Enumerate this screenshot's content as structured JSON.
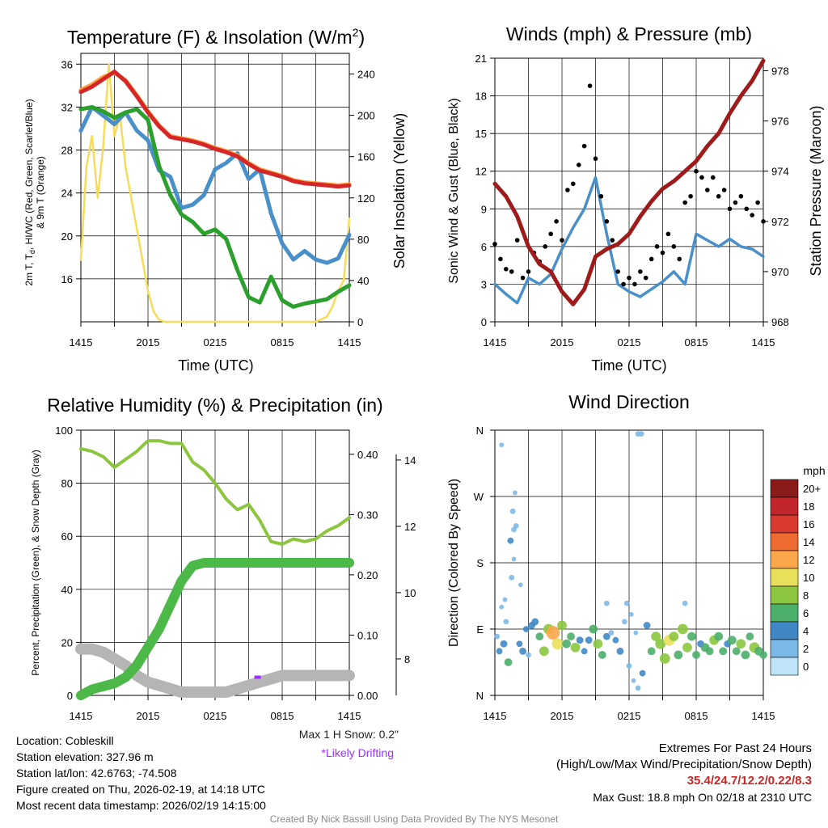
{
  "colors": {
    "red": "#d62728",
    "orange": "#ffa040",
    "green": "#2ca02c",
    "blue": "#4a90c8",
    "yellow": "#f7dc5a",
    "maroon": "#9e1b1b",
    "black": "#000000",
    "gray": "#b5b5b5",
    "rh_green": "#8cc63f",
    "precip_green": "#4cb848",
    "purple": "#9b30ff"
  },
  "time_ticks": [
    "1415",
    "2015",
    "0215",
    "0815",
    "1415"
  ],
  "chart_data": [
    {
      "type": "line",
      "title": "Temperature (F) & Insolation (W/m",
      "title_sup": "2",
      "title_close": ")",
      "xlabel": "Time (UTC)",
      "ylabel_line1": "2m T, T",
      "ylabel_sub": "d",
      "ylabel_line1_rest": ", HI/WC (Red, Green, Scarlet/Blue)",
      "ylabel_line2": "& 9m T (Orange)",
      "ylabel_right": "Solar Insolation (Yellow)",
      "ylim": [
        12,
        37
      ],
      "yticks": [
        "16",
        "20",
        "24",
        "28",
        "32",
        "36"
      ],
      "ylim_right": [
        0,
        260
      ],
      "yticks_right": [
        "0",
        "40",
        "80",
        "120",
        "160",
        "200",
        "240"
      ],
      "xlim": [
        0,
        24
      ],
      "series": [
        {
          "name": "9m T",
          "color": "orange",
          "axis": "left",
          "x": [
            0,
            1,
            2,
            3,
            4,
            5,
            6,
            7,
            8,
            9,
            10,
            11,
            12,
            13,
            14,
            15,
            16,
            17,
            18,
            19,
            20,
            21,
            22,
            23,
            24
          ],
          "values": [
            33.6,
            34.1,
            34.8,
            35.2,
            34.5,
            33.1,
            31.6,
            30.3,
            29.3,
            29.1,
            28.9,
            28.6,
            28.2,
            27.9,
            27.5,
            26.8,
            26.2,
            25.9,
            25.6,
            25.2,
            25.0,
            24.9,
            24.8,
            24.7,
            24.8
          ]
        },
        {
          "name": "2m T",
          "color": "red",
          "axis": "left",
          "x": [
            0,
            1,
            2,
            3,
            4,
            5,
            6,
            7,
            8,
            9,
            10,
            11,
            12,
            13,
            14,
            15,
            16,
            17,
            18,
            19,
            20,
            21,
            22,
            23,
            24
          ],
          "values": [
            33.4,
            33.9,
            34.6,
            35.3,
            34.4,
            33.0,
            31.5,
            30.2,
            29.2,
            29.0,
            28.8,
            28.5,
            28.1,
            27.8,
            27.4,
            26.7,
            26.1,
            25.8,
            25.5,
            25.1,
            24.9,
            24.8,
            24.7,
            24.6,
            24.7
          ]
        },
        {
          "name": "Td",
          "color": "green",
          "axis": "left",
          "x": [
            0,
            1,
            2,
            3,
            4,
            5,
            6,
            7,
            8,
            9,
            10,
            11,
            12,
            13,
            14,
            15,
            16,
            17,
            18,
            19,
            20,
            21,
            22,
            23,
            24
          ],
          "values": [
            31.8,
            32.0,
            31.6,
            31.0,
            31.5,
            31.8,
            30.8,
            26.5,
            23.8,
            22.0,
            21.3,
            20.2,
            20.6,
            19.7,
            16.8,
            14.3,
            13.8,
            16.2,
            14.0,
            13.4,
            13.7,
            13.9,
            14.1,
            14.8,
            15.4
          ]
        },
        {
          "name": "HI/WC",
          "color": "blue",
          "axis": "left",
          "x": [
            0,
            1,
            2,
            3,
            4,
            5,
            6,
            7,
            8,
            9,
            10,
            11,
            12,
            13,
            14,
            15,
            16,
            17,
            18,
            19,
            20,
            21,
            22,
            23,
            24
          ],
          "values": [
            29.8,
            32.0,
            31.2,
            30.4,
            31.5,
            29.8,
            28.9,
            26.1,
            25.5,
            22.6,
            22.9,
            23.8,
            26.2,
            26.8,
            27.7,
            25.3,
            26.2,
            22.1,
            19.3,
            17.8,
            18.6,
            17.8,
            17.5,
            17.9,
            20.1
          ]
        },
        {
          "name": "Solar Insolation",
          "color": "yellow",
          "axis": "right",
          "x": [
            0,
            0.5,
            1,
            1.5,
            2,
            2.5,
            3,
            3.5,
            4,
            4.5,
            5,
            5.5,
            6,
            6.5,
            7,
            7.5,
            8,
            9,
            10,
            12,
            14,
            16,
            18,
            20,
            21,
            22,
            22.5,
            23,
            23.5,
            24
          ],
          "values": [
            60,
            150,
            180,
            120,
            170,
            250,
            180,
            200,
            150,
            120,
            90,
            60,
            30,
            10,
            2,
            0,
            0,
            0,
            0,
            0,
            0,
            0,
            0,
            0,
            0,
            5,
            15,
            30,
            40,
            100
          ]
        }
      ]
    },
    {
      "type": "line",
      "title": "Winds (mph) & Pressure (mb)",
      "xlabel": "Time (UTC)",
      "ylabel": "Sonic Wind & Gust (Blue, Black)",
      "ylabel_right": "Station Pressure (Maroon)",
      "ylim": [
        0,
        21
      ],
      "yticks": [
        "0",
        "3",
        "6",
        "9",
        "12",
        "15",
        "18",
        "21"
      ],
      "ylim_right": [
        968,
        978.5
      ],
      "yticks_right": [
        "968",
        "970",
        "972",
        "974",
        "976",
        "978"
      ],
      "xlim": [
        0,
        24
      ],
      "series": [
        {
          "name": "Pressure",
          "color": "maroon",
          "axis": "right",
          "x": [
            0,
            1,
            2,
            3,
            4,
            5,
            6,
            7,
            8,
            9,
            10,
            11,
            12,
            13,
            14,
            15,
            16,
            17,
            18,
            19,
            20,
            21,
            22,
            23,
            24
          ],
          "values": [
            973.5,
            973.0,
            972.2,
            971.0,
            970.3,
            970.0,
            969.2,
            968.7,
            969.3,
            970.6,
            970.9,
            971.1,
            971.5,
            972.2,
            972.8,
            973.3,
            973.6,
            974.0,
            974.4,
            975.0,
            975.5,
            976.3,
            977.0,
            977.6,
            978.4
          ]
        },
        {
          "name": "Sonic Wind",
          "color": "blue",
          "axis": "left",
          "x": [
            0,
            1,
            2,
            3,
            4,
            5,
            6,
            7,
            8,
            9,
            10,
            11,
            12,
            13,
            14,
            15,
            16,
            17,
            18,
            19,
            20,
            21,
            22,
            23,
            24
          ],
          "values": [
            3.0,
            2.2,
            1.5,
            3.5,
            3.0,
            3.8,
            5.8,
            7.5,
            9.0,
            11.5,
            7.0,
            3.0,
            2.4,
            2.0,
            2.6,
            3.2,
            4.0,
            3.0,
            7.0,
            6.5,
            6.0,
            6.6,
            6.0,
            5.8,
            5.2
          ]
        },
        {
          "name": "Gust",
          "color": "black",
          "axis": "left",
          "x": [
            0,
            0.5,
            1,
            1.5,
            2,
            2.5,
            3,
            3.5,
            4,
            4.5,
            5,
            5.5,
            6,
            6.5,
            7,
            7.5,
            8,
            8.5,
            9,
            9.5,
            10,
            10.5,
            11,
            11.5,
            12,
            12.5,
            13,
            13.5,
            14,
            14.5,
            15,
            15.5,
            16,
            16.5,
            17,
            17.5,
            18,
            18.5,
            19,
            19.5,
            20,
            20.5,
            21,
            21.5,
            22,
            22.5,
            23,
            23.5,
            24
          ],
          "values": [
            6.2,
            5.0,
            4.2,
            4.0,
            6.5,
            3.5,
            4.0,
            5.5,
            4.8,
            6.0,
            7.0,
            8.0,
            6.5,
            10.5,
            11.0,
            12.5,
            14.0,
            18.8,
            13.0,
            10.0,
            8.0,
            6.5,
            4.0,
            3.0,
            3.5,
            3.0,
            4.0,
            3.5,
            5.0,
            6.0,
            5.5,
            7.0,
            6.0,
            5.0,
            9.5,
            10.0,
            12.0,
            11.5,
            10.5,
            11.5,
            10.0,
            10.5,
            9.0,
            9.5,
            10.0,
            9.0,
            8.5,
            9.5,
            8.0
          ]
        }
      ]
    },
    {
      "type": "line",
      "title": "Relative Humidity (%) & Precipitation (in)",
      "ylabel": "Percent, Precipitation (Green), & Snow Depth (Gray)",
      "ylim": [
        0,
        100
      ],
      "yticks": [
        "0",
        "20",
        "40",
        "60",
        "80",
        "100"
      ],
      "ylim_right": [
        0,
        0.44
      ],
      "yticks_right": [
        "0.00",
        "0.10",
        "0.20",
        "0.30",
        "0.40"
      ],
      "ylim_right2": [
        6.9,
        14.9
      ],
      "yticks_right2": [
        "8",
        "10",
        "12",
        "14"
      ],
      "xlim": [
        0,
        24
      ],
      "note_snow": "Max 1 H Snow: 0.2\"",
      "note_drift": "*Likely Drifting",
      "series": [
        {
          "name": "RH",
          "color": "rh_green",
          "axis": "left",
          "x": [
            0,
            1,
            2,
            3,
            4,
            5,
            6,
            7,
            8,
            9,
            10,
            11,
            12,
            13,
            14,
            15,
            16,
            17,
            18,
            19,
            20,
            21,
            22,
            23,
            24
          ],
          "values": [
            93,
            92,
            90,
            86,
            89,
            92,
            96,
            96,
            95,
            95,
            88,
            85,
            80,
            74,
            70,
            72,
            66,
            58,
            57,
            59,
            58,
            59,
            62,
            64,
            67
          ]
        },
        {
          "name": "Precipitation",
          "color": "precip_green",
          "axis": "right",
          "x": [
            0,
            1,
            2,
            3,
            4,
            5,
            6,
            7,
            8,
            9,
            10,
            11,
            12,
            13,
            14,
            15,
            16,
            17,
            18,
            19,
            20,
            21,
            22,
            23,
            24
          ],
          "values": [
            0.0,
            0.01,
            0.015,
            0.02,
            0.03,
            0.05,
            0.08,
            0.11,
            0.15,
            0.19,
            0.215,
            0.22,
            0.22,
            0.22,
            0.22,
            0.22,
            0.22,
            0.22,
            0.22,
            0.22,
            0.22,
            0.22,
            0.22,
            0.22,
            0.22
          ]
        },
        {
          "name": "Snow Depth",
          "color": "gray",
          "axis": "right2",
          "x": [
            0,
            1,
            2,
            3,
            4,
            5,
            6,
            7,
            8,
            9,
            10,
            11,
            12,
            13,
            14,
            15,
            16,
            17,
            18,
            19,
            20,
            21,
            22,
            23,
            24
          ],
          "values": [
            8.3,
            8.3,
            8.2,
            8.0,
            7.8,
            7.5,
            7.3,
            7.2,
            7.1,
            7.0,
            7.0,
            7.0,
            7.0,
            7.0,
            7.1,
            7.2,
            7.3,
            7.4,
            7.5,
            7.5,
            7.5,
            7.5,
            7.5,
            7.5,
            7.5
          ]
        }
      ]
    },
    {
      "type": "scatter",
      "title": "Wind Direction",
      "ylabel": "Direction (Colored By Speed)",
      "ytick_labels": [
        "N",
        "E",
        "S",
        "W",
        "N"
      ],
      "ylim": [
        0,
        360
      ],
      "xlim": [
        0,
        24
      ],
      "legend_title": "mph",
      "legend_labels": [
        "20+",
        "18",
        "16",
        "14",
        "12",
        "10",
        "8",
        "6",
        "4",
        "2",
        "0"
      ],
      "legend_colors": [
        "#8b1a1a",
        "#c0262b",
        "#d93a2f",
        "#ee6b2f",
        "#f9a74a",
        "#e8df5a",
        "#8cc63f",
        "#4caf6a",
        "#3f88c5",
        "#7db9e8",
        "#bfe3f7"
      ],
      "x": [
        0.2,
        0.4,
        0.6,
        0.8,
        1.0,
        1.2,
        1.5,
        1.7,
        1.9,
        2.2,
        2.5,
        2.8,
        3.0,
        3.3,
        3.6,
        4.0,
        4.4,
        4.8,
        5.2,
        5.6,
        6.0,
        6.4,
        6.8,
        7.2,
        7.6,
        8.0,
        8.4,
        8.8,
        9.2,
        9.6,
        10.0,
        10.4,
        10.8,
        11.2,
        11.6,
        12.0,
        12.4,
        12.8,
        13.2,
        13.6,
        14.0,
        14.4,
        14.8,
        15.2,
        15.6,
        16.0,
        16.4,
        16.8,
        17.2,
        17.6,
        18.0,
        18.4,
        18.8,
        19.2,
        19.6,
        20.0,
        20.4,
        20.8,
        21.2,
        21.6,
        22.0,
        22.4,
        22.8,
        23.2,
        23.6,
        24.0,
        0.6,
        1.4,
        1.6,
        1.7,
        1.8,
        12.8,
        13.1,
        10.0,
        11.8,
        12.6,
        17.0,
        0.9,
        2.3,
        12.2
      ],
      "values": [
        80,
        60,
        120,
        70,
        100,
        45,
        160,
        185,
        230,
        70,
        60,
        90,
        55,
        95,
        100,
        80,
        60,
        90,
        85,
        70,
        95,
        70,
        80,
        65,
        75,
        60,
        75,
        90,
        70,
        55,
        80,
        85,
        75,
        60,
        100,
        40,
        20,
        10,
        30,
        95,
        60,
        80,
        70,
        50,
        75,
        80,
        55,
        90,
        65,
        80,
        55,
        70,
        65,
        60,
        75,
        80,
        60,
        70,
        75,
        60,
        70,
        55,
        80,
        65,
        60,
        55,
        340,
        210,
        250,
        225,
        275,
        355,
        355,
        125,
        125,
        85,
        125,
        130,
        150,
        110
      ],
      "speeds": [
        2,
        3,
        1,
        4,
        2,
        5,
        2,
        1,
        2,
        3,
        4,
        3,
        2,
        4,
        4,
        5,
        7,
        8,
        12,
        9,
        7,
        6,
        5,
        7,
        4,
        3,
        4,
        6,
        7,
        5,
        4,
        2,
        3,
        4,
        2,
        2,
        1,
        2,
        3,
        4,
        5,
        7,
        8,
        8,
        9,
        7,
        6,
        8,
        7,
        6,
        5,
        4,
        6,
        5,
        7,
        6,
        5,
        4,
        6,
        5,
        7,
        6,
        5,
        8,
        6,
        5,
        1,
        3,
        2,
        2,
        1,
        2,
        2,
        2,
        2,
        1,
        2,
        1,
        1,
        1
      ]
    }
  ],
  "footer": {
    "location": "Location: Cobleskill",
    "elevation": "Station elevation: 327.96 m",
    "latlon": "Station lat/lon: 42.6763; -74.508",
    "created": "Figure created on Thu, 2026-02-19, at 14:18 UTC",
    "recent": "Most recent data timestamp: 2026/02/19 14:15:00",
    "extremes_title": "Extremes For Past 24 Hours",
    "extremes_sub": "(High/Low/Max Wind/Precipitation/Snow Depth)",
    "extremes_values": "35.4/24.7/12.2/0.22/8.3",
    "max_gust": "Max Gust: 18.8 mph On 02/18 at 2310 UTC",
    "credit": "Created By Nick Bassill Using Data Provided By The NYS Mesonet"
  }
}
